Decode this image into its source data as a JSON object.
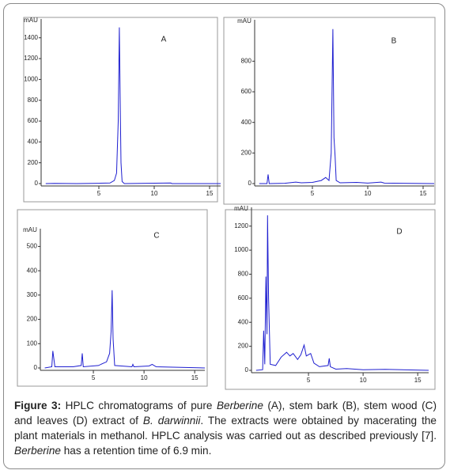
{
  "chart_data": [
    {
      "type": "line",
      "panel_label": "A",
      "y_label": "mAU",
      "color": "#1f1fd0",
      "x": [
        0.2,
        1,
        3,
        5,
        6,
        6.4,
        6.6,
        6.75,
        6.85,
        6.95,
        7.0,
        7.1,
        7.3,
        11.5,
        11.6,
        16
      ],
      "values": [
        0,
        2,
        0,
        3,
        5,
        30,
        100,
        600,
        1500,
        600,
        200,
        20,
        0,
        5,
        0,
        0
      ],
      "xlim": [
        0,
        16
      ],
      "xticks": [
        5,
        10,
        15
      ],
      "ylim": [
        0,
        1550
      ],
      "yticks": [
        0,
        200,
        400,
        600,
        800,
        1000,
        1200,
        1400
      ]
    },
    {
      "type": "line",
      "panel_label": "B",
      "y_label": "mAU",
      "color": "#1f1fd0",
      "x": [
        0.2,
        0.9,
        1.0,
        1.1,
        2.5,
        3.5,
        4,
        5,
        5.8,
        6.2,
        6.5,
        6.7,
        6.85,
        6.95,
        7.05,
        7.15,
        7.5,
        9,
        10,
        11.2,
        11.5,
        16
      ],
      "values": [
        0,
        0,
        60,
        0,
        2,
        10,
        5,
        8,
        20,
        40,
        20,
        200,
        1010,
        300,
        180,
        20,
        5,
        8,
        3,
        10,
        3,
        0
      ],
      "xlim": [
        0,
        16
      ],
      "xticks": [
        5,
        10,
        15
      ],
      "ylim": [
        0,
        1050
      ],
      "yticks": [
        0,
        200,
        400,
        600,
        800
      ]
    },
    {
      "type": "line",
      "panel_label": "C",
      "y_label": "mAU",
      "color": "#1f1fd0",
      "x": [
        0.2,
        0.9,
        1.0,
        1.2,
        3.0,
        3.8,
        3.9,
        4.0,
        5.5,
        6.0,
        6.3,
        6.6,
        6.75,
        6.85,
        6.95,
        7.1,
        8.8,
        8.9,
        9.0,
        10.5,
        10.8,
        11.2,
        16
      ],
      "values": [
        0,
        5,
        70,
        5,
        5,
        10,
        60,
        5,
        10,
        20,
        25,
        60,
        150,
        320,
        120,
        10,
        5,
        15,
        5,
        8,
        15,
        5,
        0
      ],
      "xlim": [
        0,
        16
      ],
      "xticks": [
        5,
        10,
        15
      ],
      "ylim": [
        0,
        560
      ],
      "yticks": [
        0,
        100,
        200,
        300,
        400,
        500
      ]
    },
    {
      "type": "line",
      "panel_label": "D",
      "y_label": "mAU",
      "color": "#1f1fd0",
      "x": [
        0.2,
        0.8,
        0.9,
        1.0,
        1.1,
        1.2,
        1.25,
        1.35,
        1.5,
        2.0,
        2.5,
        3.0,
        3.3,
        3.6,
        4.0,
        4.3,
        4.6,
        4.8,
        5.2,
        5.5,
        6.0,
        6.8,
        6.9,
        7.0,
        7.5,
        8.5,
        10,
        12,
        16
      ],
      "values": [
        0,
        5,
        330,
        50,
        780,
        300,
        1290,
        600,
        50,
        40,
        110,
        150,
        120,
        140,
        90,
        130,
        210,
        120,
        140,
        60,
        30,
        40,
        100,
        30,
        10,
        15,
        5,
        8,
        0
      ],
      "xlim": [
        0,
        16
      ],
      "xticks": [
        5,
        10,
        15
      ],
      "ylim": [
        0,
        1330
      ],
      "yticks": [
        0,
        200,
        400,
        600,
        800,
        1000,
        1200
      ]
    }
  ],
  "caption": {
    "label": "Figure 3:",
    "parts": [
      " HPLC chromatograms of pure ",
      "Berberine",
      " (A), stem bark (B), stem wood (C) and leaves (D) extract of ",
      "B. darwinnii",
      ". The extracts were obtained by macerating the plant materials in methanol. HPLC analysis was carried out as described previously [7]. ",
      "Berberine",
      " has a retention time of 6.9 min."
    ]
  }
}
